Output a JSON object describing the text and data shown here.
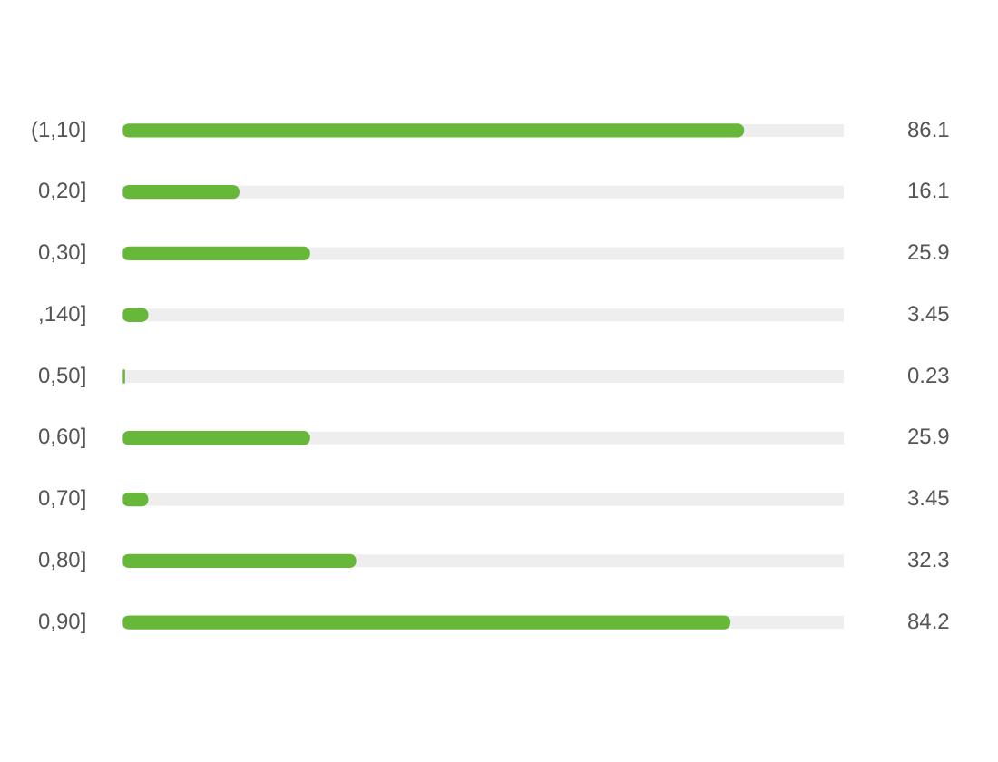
{
  "chart_data": {
    "type": "bar",
    "orientation": "horizontal",
    "categories": [
      "(1,10]",
      "0,20]",
      "0,30]",
      ",140]",
      "0,50]",
      "0,60]",
      "0,70]",
      "0,80]",
      "0,90]"
    ],
    "values": [
      86.1,
      16.1,
      25.9,
      3.45,
      0.23,
      25.9,
      3.45,
      32.3,
      84.2
    ],
    "value_labels": [
      "86.1",
      "16.1",
      "25.9",
      "3.45",
      "0.23",
      "25.9",
      "3.45",
      "32.3",
      "84.2"
    ],
    "color": "#67b83a",
    "xlim": [
      0,
      100
    ],
    "tick_labels": "y",
    "grid": false,
    "legend": false
  }
}
